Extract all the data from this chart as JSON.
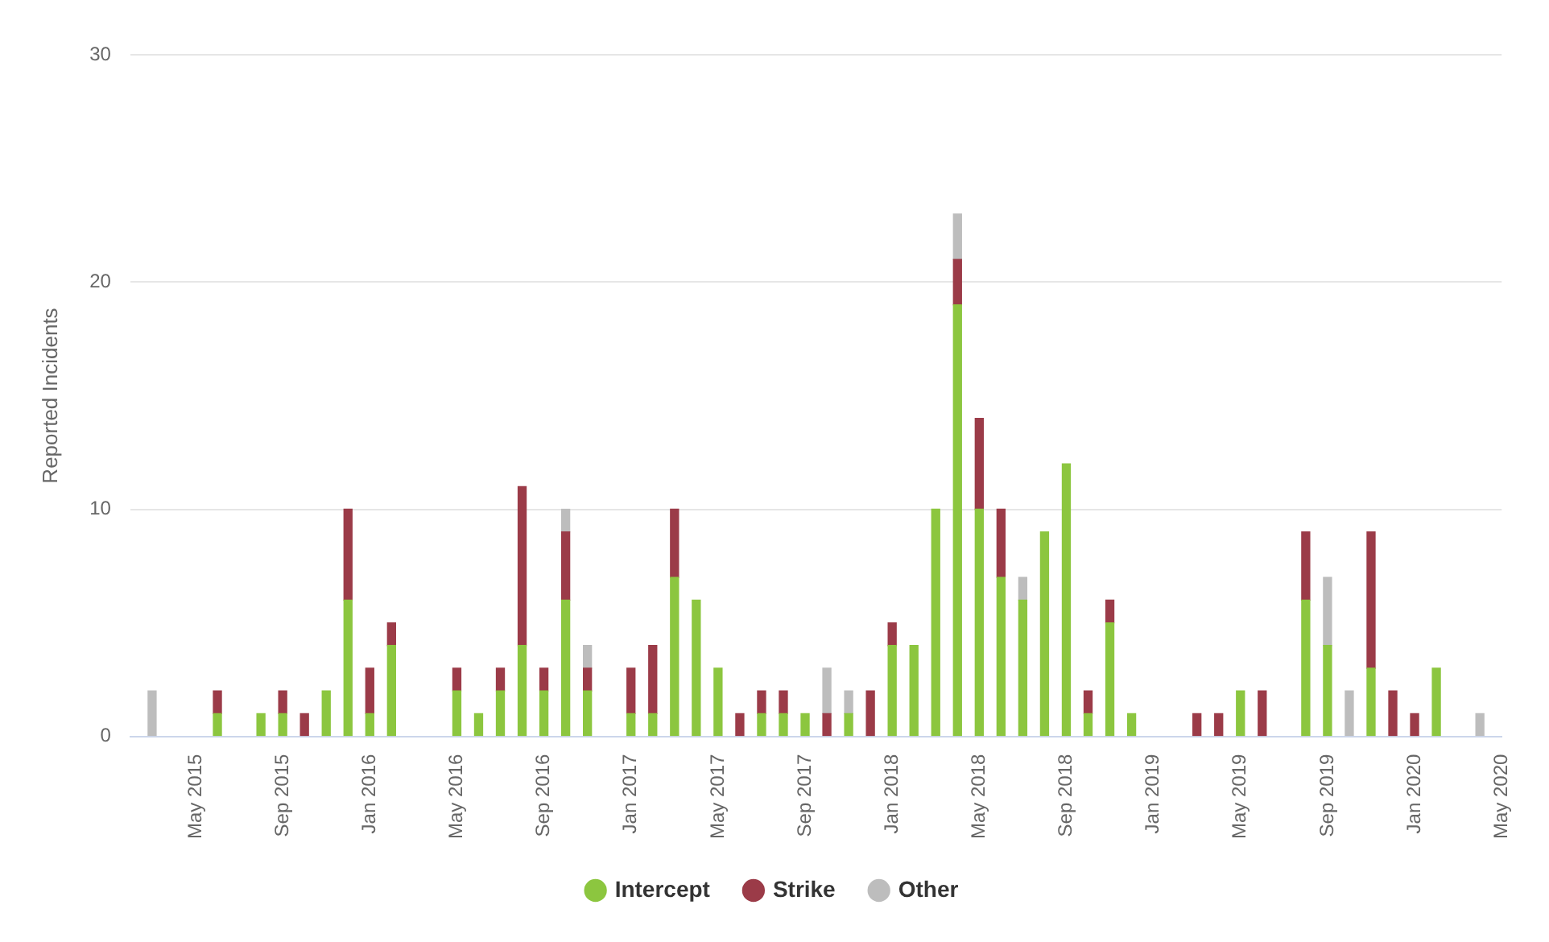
{
  "chart_data": {
    "type": "bar",
    "stacked": true,
    "ylabel": "Reported Incidents",
    "ylim": [
      0,
      30
    ],
    "yticks": [
      0,
      10,
      20,
      30
    ],
    "grid": "y",
    "legend": "bottom",
    "xlim": [
      "2015-02",
      "2020-05"
    ],
    "xticks": [
      {
        "value": "2015-05",
        "label": "May 2015"
      },
      {
        "value": "2015-09",
        "label": "Sep 2015"
      },
      {
        "value": "2016-01",
        "label": "Jan 2016"
      },
      {
        "value": "2016-05",
        "label": "May 2016"
      },
      {
        "value": "2016-09",
        "label": "Sep 2016"
      },
      {
        "value": "2017-01",
        "label": "Jan 2017"
      },
      {
        "value": "2017-05",
        "label": "May 2017"
      },
      {
        "value": "2017-09",
        "label": "Sep 2017"
      },
      {
        "value": "2018-01",
        "label": "Jan 2018"
      },
      {
        "value": "2018-05",
        "label": "May 2018"
      },
      {
        "value": "2018-09",
        "label": "Sep 2018"
      },
      {
        "value": "2019-01",
        "label": "Jan 2019"
      },
      {
        "value": "2019-05",
        "label": "May 2019"
      },
      {
        "value": "2019-09",
        "label": "Sep 2019"
      },
      {
        "value": "2020-01",
        "label": "Jan 2020"
      },
      {
        "value": "2020-05",
        "label": "May 2020"
      }
    ],
    "x": [
      "2015-03",
      "2015-06",
      "2015-08",
      "2015-09",
      "2015-10",
      "2015-11",
      "2015-12",
      "2016-01",
      "2016-02",
      "2016-05",
      "2016-06",
      "2016-07",
      "2016-08",
      "2016-09",
      "2016-10",
      "2016-11",
      "2017-01",
      "2017-02",
      "2017-03",
      "2017-04",
      "2017-05",
      "2017-06",
      "2017-07",
      "2017-08",
      "2017-09",
      "2017-10",
      "2017-11",
      "2017-12",
      "2018-01",
      "2018-02",
      "2018-03",
      "2018-04",
      "2018-05",
      "2018-06",
      "2018-07",
      "2018-08",
      "2018-09",
      "2018-10",
      "2018-11",
      "2018-12",
      "2019-01",
      "2019-03",
      "2019-04",
      "2019-05",
      "2019-06",
      "2019-08",
      "2019-09",
      "2019-10",
      "2019-11",
      "2019-12",
      "2020-01",
      "2020-02",
      "2020-04"
    ],
    "series": [
      {
        "name": "Intercept",
        "color": "#8cc63f",
        "values": [
          null,
          1,
          1,
          1,
          null,
          2,
          6,
          1,
          4,
          2,
          1,
          2,
          4,
          2,
          6,
          2,
          1,
          1,
          7,
          6,
          3,
          null,
          1,
          1,
          1,
          null,
          1,
          null,
          4,
          4,
          10,
          19,
          10,
          7,
          6,
          9,
          12,
          1,
          5,
          1,
          null,
          null,
          null,
          2,
          null,
          6,
          4,
          null,
          3,
          null,
          null,
          3,
          null
        ]
      },
      {
        "name": "Strike",
        "color": "#9b3b48",
        "values": [
          null,
          1,
          null,
          1,
          1,
          null,
          4,
          2,
          1,
          1,
          null,
          1,
          7,
          1,
          3,
          1,
          2,
          3,
          3,
          null,
          null,
          1,
          1,
          1,
          null,
          1,
          null,
          2,
          1,
          null,
          null,
          2,
          4,
          3,
          null,
          null,
          null,
          1,
          1,
          null,
          null,
          1,
          1,
          null,
          2,
          3,
          null,
          null,
          6,
          2,
          1,
          null,
          null
        ]
      },
      {
        "name": "Other",
        "color": "#bdbdbd",
        "values": [
          2,
          null,
          null,
          null,
          null,
          null,
          null,
          null,
          null,
          null,
          null,
          null,
          null,
          null,
          1,
          1,
          null,
          null,
          null,
          null,
          null,
          null,
          null,
          null,
          null,
          2,
          1,
          null,
          null,
          null,
          null,
          2,
          null,
          null,
          1,
          null,
          null,
          null,
          null,
          null,
          null,
          null,
          null,
          null,
          null,
          null,
          3,
          2,
          null,
          null,
          null,
          null,
          1
        ]
      }
    ]
  }
}
